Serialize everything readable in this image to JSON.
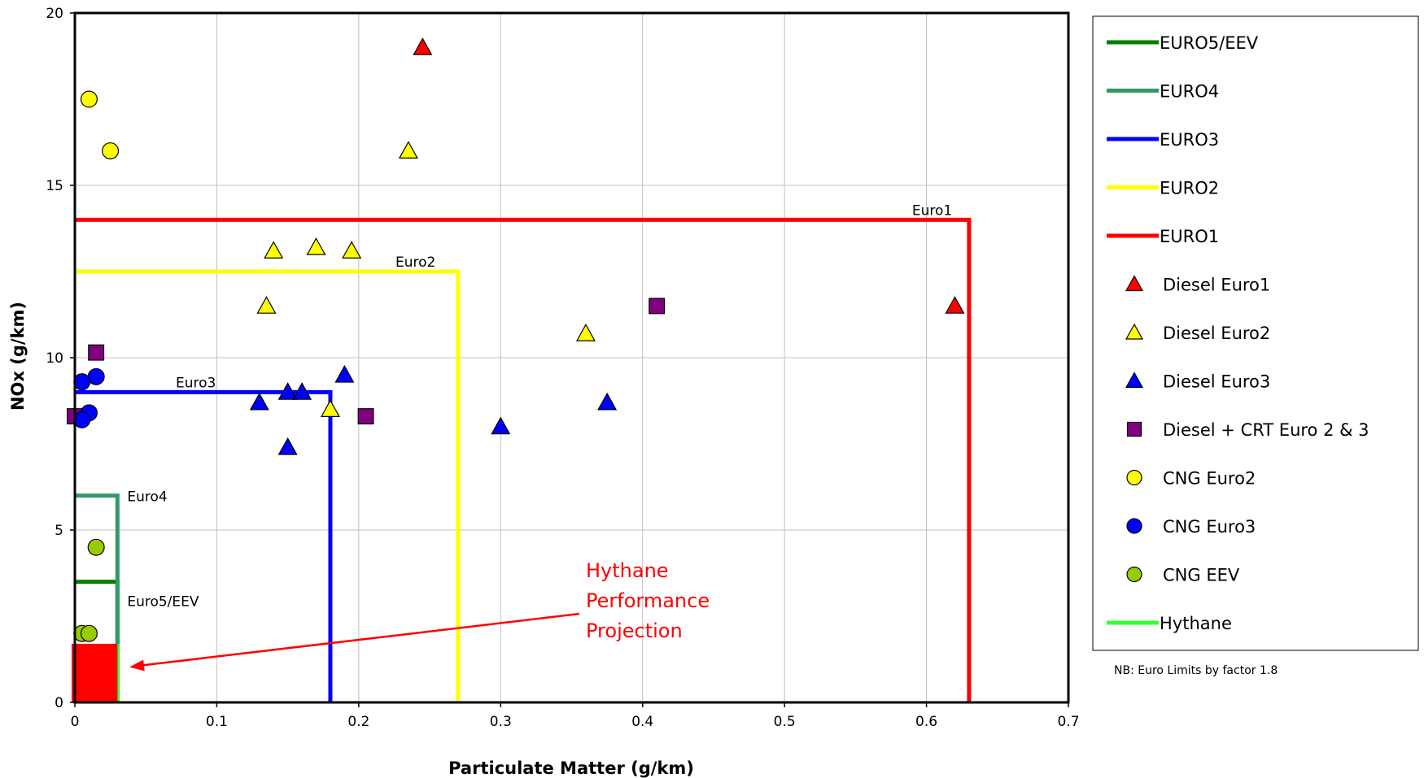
{
  "chart_data": {
    "type": "scatter",
    "xlabel": "Particulate Matter (g/km)",
    "ylabel": "NOx (g/km)",
    "xlim": [
      0,
      0.7
    ],
    "ylim": [
      0,
      20
    ],
    "x_ticks": [
      0,
      0.1,
      0.2,
      0.3,
      0.4,
      0.5,
      0.6,
      0.7
    ],
    "y_ticks": [
      0,
      5,
      10,
      15,
      20
    ],
    "x_tick_labels": [
      "0",
      "0.1",
      "0.2",
      "0.3",
      "0.4",
      "0.5",
      "0.6",
      "0.7"
    ],
    "y_tick_labels": [
      "0",
      "5",
      "10",
      "15",
      "20"
    ],
    "grid": true,
    "legend_position": "right",
    "limit_lines": [
      {
        "name": "EURO5/EEV",
        "label": "Euro5/EEV",
        "pm": 0.03,
        "nox": 3.5,
        "color": "#008000"
      },
      {
        "name": "EURO4",
        "label": "Euro4",
        "pm": 0.03,
        "nox": 6.0,
        "color": "#339966"
      },
      {
        "name": "EURO3",
        "label": "Euro3",
        "pm": 0.18,
        "nox": 9.0,
        "color": "#0000ff"
      },
      {
        "name": "EURO2",
        "label": "Euro2",
        "pm": 0.27,
        "nox": 12.5,
        "color": "#ffff00"
      },
      {
        "name": "EURO1",
        "label": "Euro1",
        "pm": 0.63,
        "nox": 14.0,
        "color": "#ff0000"
      },
      {
        "name": "Hythane",
        "label": "",
        "pm": 0.03,
        "nox": 0,
        "color": "#33ff33"
      }
    ],
    "series": [
      {
        "name": "Diesel Euro1",
        "marker": "triangle",
        "color": "#ff0000",
        "points": [
          [
            0.245,
            19.0
          ],
          [
            0.62,
            11.5
          ]
        ]
      },
      {
        "name": "Diesel Euro2",
        "marker": "triangle",
        "color": "#ffff00",
        "points": [
          [
            0.235,
            16.0
          ],
          [
            0.14,
            13.1
          ],
          [
            0.17,
            13.2
          ],
          [
            0.195,
            13.1
          ],
          [
            0.135,
            11.5
          ],
          [
            0.36,
            10.7
          ],
          [
            0.18,
            8.5
          ]
        ]
      },
      {
        "name": "Diesel Euro3",
        "marker": "triangle",
        "color": "#0000ff",
        "points": [
          [
            0.19,
            9.5
          ],
          [
            0.15,
            9.0
          ],
          [
            0.16,
            9.0
          ],
          [
            0.13,
            8.7
          ],
          [
            0.375,
            8.7
          ],
          [
            0.3,
            8.0
          ],
          [
            0.15,
            7.4
          ]
        ]
      },
      {
        "name": "Diesel + CRT  Euro 2 & 3",
        "marker": "square",
        "color": "#800080",
        "points": [
          [
            0.015,
            10.15
          ],
          [
            0.41,
            11.5
          ],
          [
            0.205,
            8.3
          ],
          [
            0.0,
            8.3
          ]
        ]
      },
      {
        "name": "CNG Euro2",
        "marker": "circle",
        "color": "#ffff00",
        "points": [
          [
            0.01,
            17.5
          ],
          [
            0.025,
            16.0
          ]
        ]
      },
      {
        "name": "CNG Euro3",
        "marker": "circle",
        "color": "#0000ff",
        "points": [
          [
            0.015,
            9.45
          ],
          [
            0.005,
            9.3
          ],
          [
            0.01,
            8.4
          ],
          [
            0.005,
            8.2
          ]
        ]
      },
      {
        "name": "CNG EEV",
        "marker": "circle",
        "color": "#99cc00",
        "points": [
          [
            0.015,
            4.5
          ],
          [
            0.005,
            2.0
          ],
          [
            0.01,
            2.0
          ]
        ]
      }
    ],
    "hythane_projection": {
      "pm_max": 0.03,
      "nox_max": 1.7,
      "color": "#ff0000"
    },
    "annotation": {
      "lines": [
        "Hythane",
        "Performance",
        "Projection"
      ],
      "arrow_to": [
        0.035,
        1.0
      ],
      "color": "#ff0000"
    },
    "legend": [
      {
        "label": "EURO5/EEV",
        "kind": "line",
        "color": "#008000"
      },
      {
        "label": "EURO4",
        "kind": "line",
        "color": "#339966"
      },
      {
        "label": "EURO3",
        "kind": "line",
        "color": "#0000ff"
      },
      {
        "label": "EURO2",
        "kind": "line",
        "color": "#ffff00"
      },
      {
        "label": "EURO1",
        "kind": "line",
        "color": "#ff0000"
      },
      {
        "label": "Diesel Euro1",
        "kind": "triangle",
        "color": "#ff0000"
      },
      {
        "label": "Diesel Euro2",
        "kind": "triangle",
        "color": "#ffff00"
      },
      {
        "label": "Diesel Euro3",
        "kind": "triangle",
        "color": "#0000ff"
      },
      {
        "label": "Diesel + CRT  Euro 2 & 3",
        "kind": "square",
        "color": "#800080"
      },
      {
        "label": "CNG Euro2",
        "kind": "circle",
        "color": "#ffff00"
      },
      {
        "label": "CNG Euro3",
        "kind": "circle",
        "color": "#0000ff"
      },
      {
        "label": "CNG EEV",
        "kind": "circle",
        "color": "#99cc00"
      },
      {
        "label": "Hythane",
        "kind": "line",
        "color": "#33ff33"
      }
    ],
    "note": "NB: Euro Limits by factor 1.8"
  }
}
